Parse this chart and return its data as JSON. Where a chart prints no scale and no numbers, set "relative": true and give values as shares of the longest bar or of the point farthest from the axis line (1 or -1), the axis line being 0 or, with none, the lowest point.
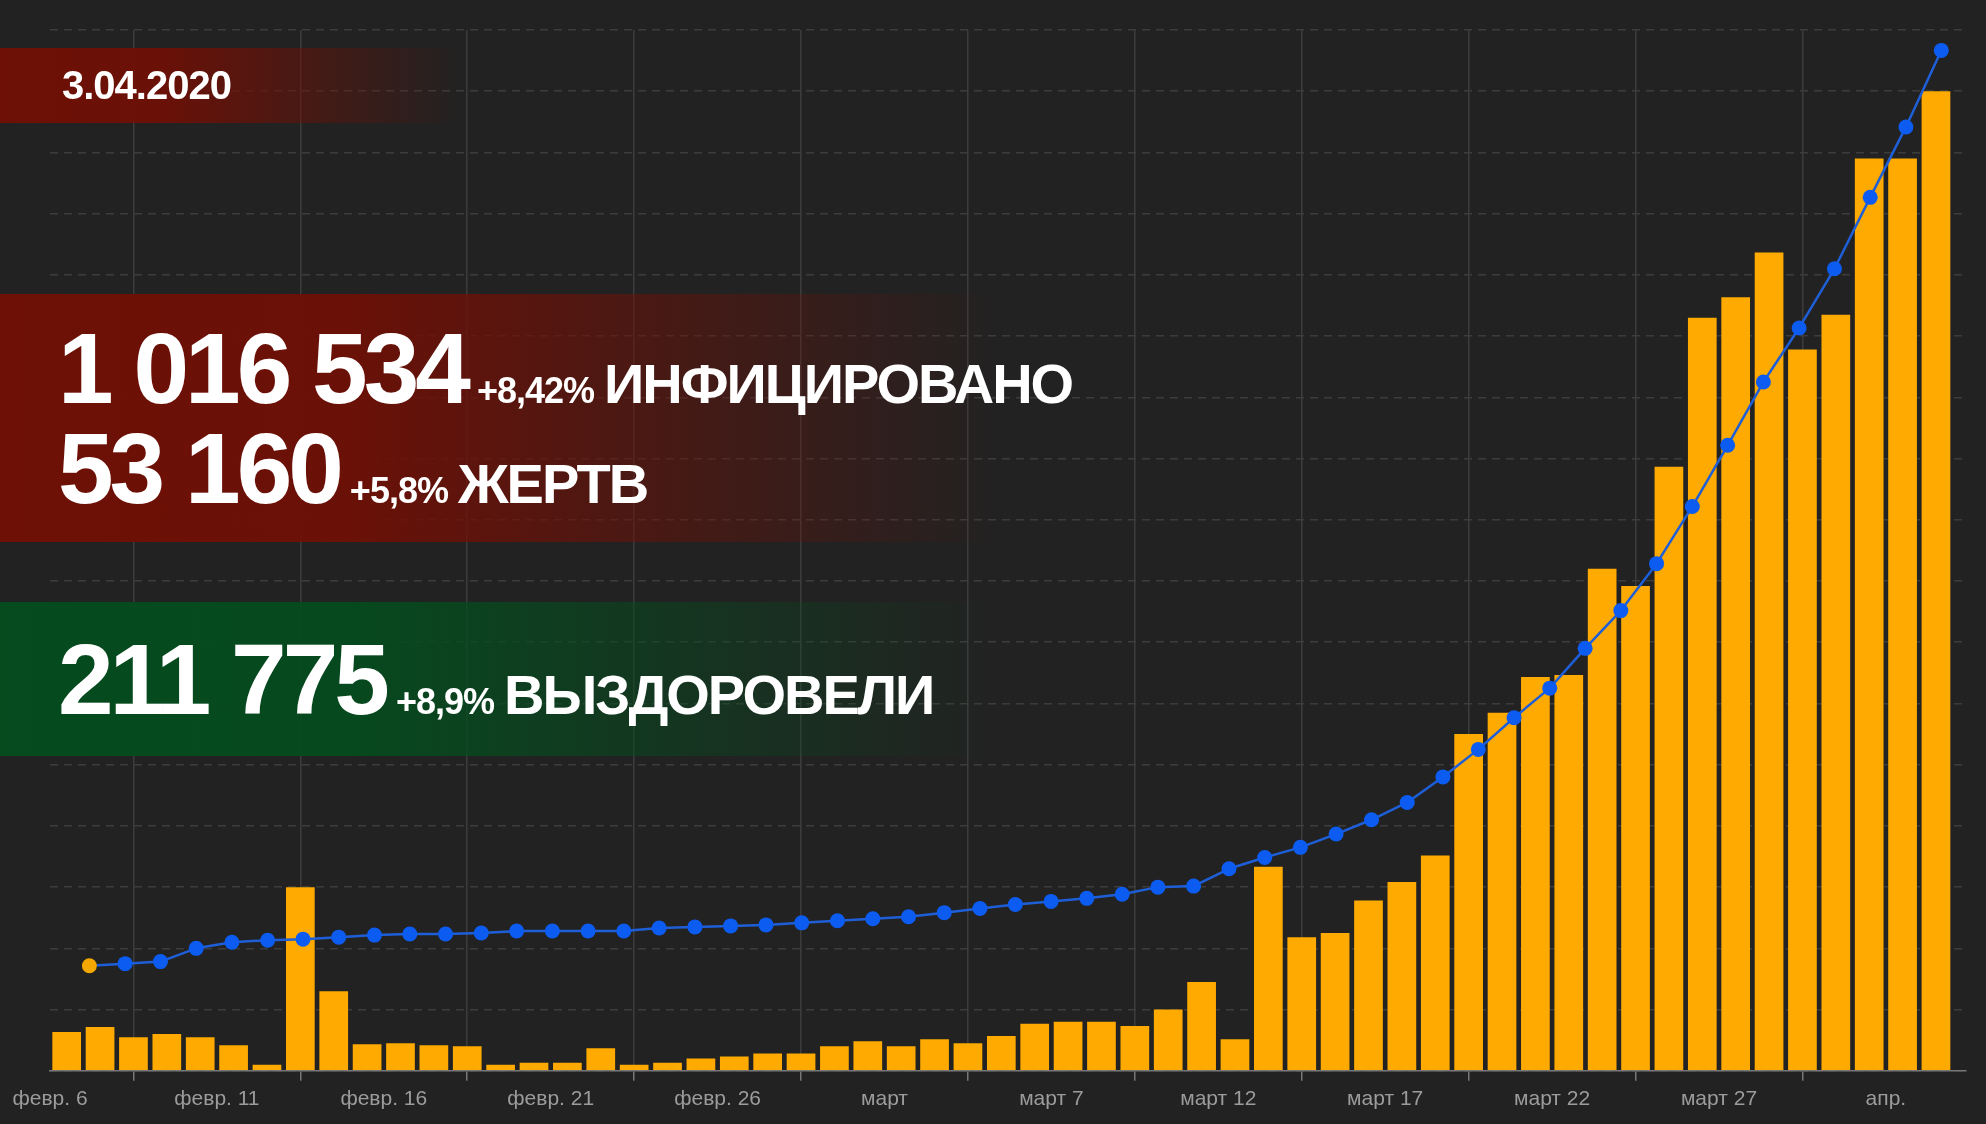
{
  "chart_data": {
    "type": "bar",
    "relative": true,
    "grid": true,
    "marker": "circle",
    "x": [
      "2020-02-06T12:00",
      "2020-02-07T12:00",
      "2020-02-08T12:00",
      "2020-02-09T12:00",
      "2020-02-10T12:00",
      "2020-02-11T12:00",
      "2020-02-12T12:00",
      "2020-02-13T12:00",
      "2020-02-14T12:00",
      "2020-02-15T12:00",
      "2020-02-16T12:00",
      "2020-02-17T12:00",
      "2020-02-18T12:00",
      "2020-02-19T12:00",
      "2020-02-20T12:00",
      "2020-02-21T12:00",
      "2020-02-22T12:00",
      "2020-02-23T12:00",
      "2020-02-24T12:00",
      "2020-02-25T12:00",
      "2020-02-26T12:00",
      "2020-02-27T12:00",
      "2020-02-28T12:00",
      "2020-02-29T12:00",
      "2020-03-01T12:00",
      "2020-03-02T12:00",
      "2020-03-03T12:00",
      "2020-03-04T12:00",
      "2020-03-05T12:00",
      "2020-03-06T12:00",
      "2020-03-07T12:00",
      "2020-03-08T12:00",
      "2020-03-09T12:00",
      "2020-03-10T12:00",
      "2020-03-11T12:00",
      "2020-03-12T12:00",
      "2020-03-13T12:00",
      "2020-03-14T12:00",
      "2020-03-15T12:00",
      "2020-03-16T12:00",
      "2020-03-17T12:00",
      "2020-03-18T12:00",
      "2020-03-19T12:00",
      "2020-03-20T12:00",
      "2020-03-21T12:00",
      "2020-03-22T12:00",
      "2020-03-23T12:00",
      "2020-03-24T12:00",
      "2020-03-25T12:00",
      "2020-03-26T12:00",
      "2020-03-27T12:00",
      "2020-03-28T12:00",
      "2020-03-29T12:00",
      "2020-03-30T12:00",
      "2020-03-31T12:00",
      "2020-04-01T12:00",
      "2020-04-02T12:00"
    ],
    "xlim": [
      "2020-02-06",
      "2020-04-03T09:36"
    ],
    "xticks": [
      {
        "value": "2020-02-06",
        "label": "февр. 6"
      },
      {
        "value": "2020-02-11",
        "label": "февр. 11"
      },
      {
        "value": "2020-02-16",
        "label": "февр. 16"
      },
      {
        "value": "2020-02-21",
        "label": "февр. 21"
      },
      {
        "value": "2020-02-26",
        "label": "февр. 26"
      },
      {
        "value": "2020-03-02",
        "label": "март"
      },
      {
        "value": "2020-03-07",
        "label": "март 7"
      },
      {
        "value": "2020-03-12",
        "label": "март 12"
      },
      {
        "value": "2020-03-17",
        "label": "март 17"
      },
      {
        "value": "2020-03-22",
        "label": "март 22"
      },
      {
        "value": "2020-03-27",
        "label": "март 27"
      },
      {
        "value": "2020-04-01",
        "label": "апр."
      }
    ],
    "annotations": [
      "3.04.2020",
      "1 016 534",
      "+8,42%",
      "ИНФИЦИРОВАНО",
      "53 160",
      "+5,8%",
      "ЖЕРТВ",
      "211 775",
      "+8,9%",
      "ВЫЗДОРОВЕЛИ"
    ],
    "series": [
      {
        "color": "#ffaa00",
        "values": [
          0.038,
          0.043,
          0.033,
          0.036,
          0.033,
          0.025,
          0.006,
          0.18,
          0.078,
          0.026,
          0.027,
          0.025,
          0.024,
          0.006,
          0.008,
          0.008,
          0.022,
          0.006,
          0.008,
          0.012,
          0.014,
          0.017,
          0.017,
          0.024,
          0.029,
          0.024,
          0.031,
          0.027,
          0.034,
          0.046,
          0.048,
          0.048,
          0.044,
          0.06,
          0.087,
          0.031,
          0.2,
          0.131,
          0.135,
          0.167,
          0.185,
          0.211,
          0.33,
          0.351,
          0.386,
          0.388,
          0.492,
          0.475,
          0.592,
          0.738,
          0.758,
          0.802,
          0.707,
          0.741,
          0.894,
          0.894,
          0.96
        ]
      },
      {
        "type": "line",
        "color": "#1e5fd8",
        "x": [
          "2020-02-07T04:19",
          "2020-02-08T06:00",
          "2020-02-09T07:26",
          "2020-02-10T09:07",
          "2020-02-11T10:48",
          "2020-02-12T12:29",
          "2020-02-13T13:55",
          "2020-02-14T15:36",
          "2020-02-15T17:17",
          "2020-02-16T18:43",
          "2020-02-17T20:24",
          "2020-02-18T22:05",
          "2020-02-19T23:31",
          "2020-02-21T01:12",
          "2020-02-22T02:53",
          "2020-02-23T04:34",
          "2020-02-24T06:00",
          "2020-02-25T07:41",
          "2020-02-26T09:22",
          "2020-02-27T10:48",
          "2020-02-28T12:29",
          "2020-02-29T14:10",
          "2020-03-01T15:36",
          "2020-03-02T17:17",
          "2020-03-03T18:58",
          "2020-03-04T20:38",
          "2020-03-05T22:05",
          "2020-03-06T23:46",
          "2020-03-08T01:26",
          "2020-03-09T02:53",
          "2020-03-10T04:34",
          "2020-03-11T06:14",
          "2020-03-12T07:41",
          "2020-03-13T09:22",
          "2020-03-14T11:02",
          "2020-03-15T12:43",
          "2020-03-16T14:10",
          "2020-03-17T15:50",
          "2020-03-18T17:31",
          "2020-03-19T18:58",
          "2020-03-20T20:38",
          "2020-03-21T22:19",
          "2020-03-22T23:46",
          "2020-03-24T01:26",
          "2020-03-25T03:07",
          "2020-03-26T04:48",
          "2020-03-27T06:14",
          "2020-03-28T07:55",
          "2020-03-29T09:36",
          "2020-03-30T11:02",
          "2020-03-31T12:43",
          "2020-04-01T14:24",
          "2020-04-02T15:50"
        ],
        "colors": [
          "#f5a800",
          "#0d5cf2",
          "#0d5cf2",
          "#0d5cf2",
          "#0d5cf2",
          "#0d5cf2",
          "#0d5cf2",
          "#0d5cf2",
          "#0d5cf2",
          "#0d5cf2",
          "#0d5cf2",
          "#0d5cf2",
          "#0d5cf2",
          "#0d5cf2",
          "#0d5cf2",
          "#0d5cf2",
          "#0d5cf2",
          "#0d5cf2",
          "#0d5cf2",
          "#0d5cf2",
          "#0d5cf2",
          "#0d5cf2",
          "#0d5cf2",
          "#0d5cf2",
          "#0d5cf2",
          "#0d5cf2",
          "#0d5cf2",
          "#0d5cf2",
          "#0d5cf2",
          "#0d5cf2",
          "#0d5cf2",
          "#0d5cf2",
          "#0d5cf2",
          "#0d5cf2",
          "#0d5cf2",
          "#0d5cf2",
          "#0d5cf2",
          "#0d5cf2",
          "#0d5cf2",
          "#0d5cf2",
          "#0d5cf2",
          "#0d5cf2",
          "#0d5cf2",
          "#0d5cf2",
          "#0d5cf2",
          "#0d5cf2",
          "#0d5cf2",
          "#0d5cf2",
          "#0d5cf2",
          "#0d5cf2",
          "#0d5cf2",
          "#0d5cf2",
          "#0d5cf2"
        ],
        "values": [
          0.103,
          0.105,
          0.107,
          0.12,
          0.126,
          0.128,
          0.129,
          0.131,
          0.133,
          0.134,
          0.134,
          0.135,
          0.137,
          0.137,
          0.137,
          0.137,
          0.14,
          0.141,
          0.142,
          0.143,
          0.145,
          0.147,
          0.149,
          0.151,
          0.155,
          0.159,
          0.163,
          0.166,
          0.169,
          0.173,
          0.18,
          0.181,
          0.198,
          0.209,
          0.219,
          0.232,
          0.246,
          0.263,
          0.288,
          0.315,
          0.346,
          0.375,
          0.414,
          0.451,
          0.497,
          0.553,
          0.613,
          0.675,
          0.728,
          0.786,
          0.856,
          0.925,
          1
        ]
      }
    ]
  }
}
